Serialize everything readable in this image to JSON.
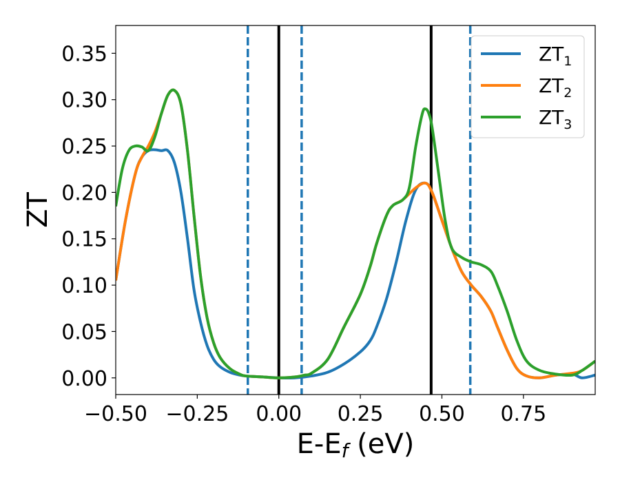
{
  "chart_data": {
    "type": "line",
    "title": "",
    "xlabel": {
      "main": "E-E",
      "sub": "f",
      "unit": " (eV)"
    },
    "ylabel": "ZT",
    "xlim": [
      -0.5,
      0.97
    ],
    "ylim": [
      -0.018,
      0.38
    ],
    "xticks": [
      -0.5,
      -0.25,
      0.0,
      0.25,
      0.5,
      0.75
    ],
    "xtick_labels": [
      "−0.50",
      "−0.25",
      "0.00",
      "0.25",
      "0.50",
      "0.75"
    ],
    "yticks": [
      0.0,
      0.05,
      0.1,
      0.15,
      0.2,
      0.25,
      0.3,
      0.35
    ],
    "ytick_labels": [
      "0.00",
      "0.05",
      "0.10",
      "0.15",
      "0.20",
      "0.25",
      "0.30",
      "0.35"
    ],
    "legend_position": "top-right",
    "vlines": [
      {
        "x": -0.095,
        "style": "dashed",
        "color": "#1f77b4"
      },
      {
        "x": 0.0,
        "style": "solid",
        "color": "#000000"
      },
      {
        "x": 0.07,
        "style": "dashed",
        "color": "#1f77b4"
      },
      {
        "x": 0.467,
        "style": "solid",
        "color": "#000000"
      },
      {
        "x": 0.587,
        "style": "dashed",
        "color": "#1f77b4"
      }
    ],
    "series": [
      {
        "name": "ZT",
        "sub": "1",
        "color": "#1f77b4",
        "x": [
          -0.5,
          -0.47,
          -0.44,
          -0.42,
          -0.4,
          -0.38,
          -0.36,
          -0.34,
          -0.32,
          -0.3,
          -0.28,
          -0.26,
          -0.24,
          -0.22,
          -0.2,
          -0.18,
          -0.15,
          -0.12,
          -0.1,
          -0.05,
          0.0,
          0.05,
          0.1,
          0.15,
          0.2,
          0.25,
          0.28,
          0.3,
          0.33,
          0.36,
          0.39,
          0.42,
          0.45,
          0.47,
          0.5,
          0.53,
          0.56,
          0.59,
          0.62,
          0.65,
          0.67,
          0.7,
          0.73,
          0.76,
          0.8,
          0.85,
          0.9,
          0.93,
          0.97
        ],
        "y": [
          0.105,
          0.17,
          0.22,
          0.238,
          0.245,
          0.246,
          0.245,
          0.245,
          0.232,
          0.2,
          0.15,
          0.095,
          0.06,
          0.035,
          0.02,
          0.012,
          0.006,
          0.003,
          0.002,
          0.001,
          0.0,
          0.0,
          0.002,
          0.006,
          0.015,
          0.028,
          0.04,
          0.055,
          0.085,
          0.125,
          0.17,
          0.203,
          0.21,
          0.2,
          0.17,
          0.14,
          0.115,
          0.1,
          0.088,
          0.072,
          0.055,
          0.03,
          0.01,
          0.002,
          0.0,
          0.003,
          0.004,
          0.0,
          0.003
        ]
      },
      {
        "name": "ZT",
        "sub": "2",
        "color": "#ff7f0e",
        "x": [
          -0.5,
          -0.47,
          -0.44,
          -0.42,
          -0.4,
          -0.38,
          -0.36,
          -0.34,
          -0.32,
          -0.3,
          -0.28,
          -0.26,
          -0.24,
          -0.22,
          -0.2,
          -0.18,
          -0.15,
          -0.12,
          -0.1,
          -0.05,
          0.0,
          0.05,
          0.08,
          0.1,
          0.15,
          0.2,
          0.25,
          0.28,
          0.3,
          0.33,
          0.35,
          0.38,
          0.42,
          0.45,
          0.47,
          0.5,
          0.53,
          0.56,
          0.59,
          0.62,
          0.65,
          0.67,
          0.7,
          0.73,
          0.76,
          0.8,
          0.85,
          0.9,
          0.93,
          0.97
        ],
        "y": [
          0.105,
          0.17,
          0.22,
          0.238,
          0.25,
          0.265,
          0.285,
          0.305,
          0.31,
          0.295,
          0.245,
          0.175,
          0.11,
          0.065,
          0.038,
          0.022,
          0.01,
          0.004,
          0.002,
          0.001,
          0.0,
          0.001,
          0.003,
          0.005,
          0.02,
          0.055,
          0.09,
          0.12,
          0.145,
          0.175,
          0.186,
          0.192,
          0.205,
          0.21,
          0.2,
          0.17,
          0.14,
          0.115,
          0.1,
          0.088,
          0.072,
          0.055,
          0.03,
          0.01,
          0.002,
          0.0,
          0.003,
          0.005,
          0.008,
          0.018
        ]
      },
      {
        "name": "ZT",
        "sub": "3",
        "color": "#2ca02c",
        "x": [
          -0.5,
          -0.48,
          -0.46,
          -0.44,
          -0.42,
          -0.4,
          -0.38,
          -0.36,
          -0.34,
          -0.32,
          -0.3,
          -0.28,
          -0.26,
          -0.24,
          -0.22,
          -0.2,
          -0.18,
          -0.15,
          -0.12,
          -0.1,
          -0.05,
          0.0,
          0.05,
          0.08,
          0.1,
          0.15,
          0.2,
          0.25,
          0.28,
          0.3,
          0.33,
          0.35,
          0.38,
          0.4,
          0.42,
          0.44,
          0.45,
          0.46,
          0.47,
          0.49,
          0.51,
          0.53,
          0.56,
          0.59,
          0.62,
          0.65,
          0.67,
          0.7,
          0.73,
          0.76,
          0.8,
          0.85,
          0.9,
          0.93,
          0.97
        ],
        "y": [
          0.185,
          0.225,
          0.245,
          0.25,
          0.249,
          0.245,
          0.26,
          0.285,
          0.305,
          0.31,
          0.295,
          0.245,
          0.175,
          0.11,
          0.065,
          0.038,
          0.022,
          0.01,
          0.004,
          0.002,
          0.001,
          0.0,
          0.001,
          0.003,
          0.005,
          0.02,
          0.055,
          0.09,
          0.12,
          0.145,
          0.175,
          0.186,
          0.192,
          0.205,
          0.25,
          0.285,
          0.29,
          0.285,
          0.27,
          0.22,
          0.17,
          0.14,
          0.13,
          0.125,
          0.122,
          0.115,
          0.1,
          0.072,
          0.04,
          0.018,
          0.008,
          0.004,
          0.003,
          0.008,
          0.018
        ]
      }
    ]
  }
}
